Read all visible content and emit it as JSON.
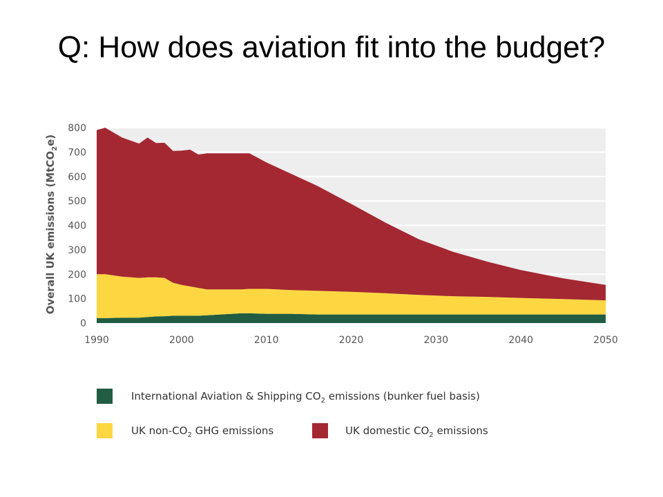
{
  "slide": {
    "title": "Q: How does aviation fit into the budget?"
  },
  "chart_data": {
    "type": "area",
    "stacked": true,
    "title": "",
    "xlabel": "",
    "ylabel": "Overall UK emissions (MtCO2e)",
    "ylabel_parts": {
      "main": "Overall UK emissions (MtCO",
      "sub": "2",
      "tail": "e)"
    },
    "xlim": [
      1990,
      2050
    ],
    "ylim": [
      0,
      800
    ],
    "x_ticks": [
      "1990",
      "2000",
      "2010",
      "2020",
      "2030",
      "2040",
      "2050"
    ],
    "y_ticks": [
      "0",
      "100",
      "200",
      "300",
      "400",
      "500",
      "600",
      "700",
      "800"
    ],
    "grid": "horizontal",
    "legend_position": "bottom",
    "x": [
      1990,
      1991,
      1993,
      1995,
      1996,
      1997,
      1998,
      1999,
      2000,
      2001,
      2002,
      2003,
      2004,
      2005,
      2006,
      2007,
      2008,
      2010,
      2013,
      2016,
      2020,
      2024,
      2028,
      2032,
      2036,
      2040,
      2045,
      2050
    ],
    "series": [
      {
        "name": "International Aviation & Shipping CO2 emissions (bunker fuel basis)",
        "color": "#225c43",
        "values": [
          20,
          20,
          22,
          22,
          25,
          27,
          28,
          30,
          30,
          30,
          30,
          32,
          34,
          36,
          38,
          40,
          40,
          38,
          38,
          35,
          35,
          35,
          35,
          35,
          35,
          35,
          35,
          35
        ]
      },
      {
        "name": "UK non-CO2 GHG emissions",
        "color": "#fdd741",
        "values": [
          180,
          180,
          168,
          163,
          162,
          160,
          157,
          135,
          126,
          120,
          114,
          106,
          104,
          102,
          100,
          98,
          100,
          102,
          97,
          97,
          93,
          87,
          80,
          75,
          72,
          68,
          63,
          58
        ]
      },
      {
        "name": "UK domestic CO2 emissions",
        "color": "#a42832",
        "values": [
          590,
          600,
          570,
          550,
          573,
          550,
          553,
          540,
          550,
          560,
          546,
          557,
          557,
          557,
          557,
          557,
          555,
          518,
          475,
          430,
          360,
          290,
          228,
          182,
          145,
          114,
          85,
          63
        ]
      }
    ],
    "legend": [
      {
        "main": "International Aviation & Shipping CO",
        "sub": "2",
        "tail": " emissions (bunker fuel basis)",
        "color": "#225c43"
      },
      {
        "main": "UK non-CO",
        "sub": "2",
        "tail": " GHG emissions",
        "color": "#fdd741"
      },
      {
        "main": "UK domestic CO",
        "sub": "2",
        "tail": " emissions",
        "color": "#a42832"
      }
    ]
  },
  "colors": {
    "plot_background": "#eeeeee",
    "gridline": "#ffffff",
    "axis_text": "#555555"
  }
}
